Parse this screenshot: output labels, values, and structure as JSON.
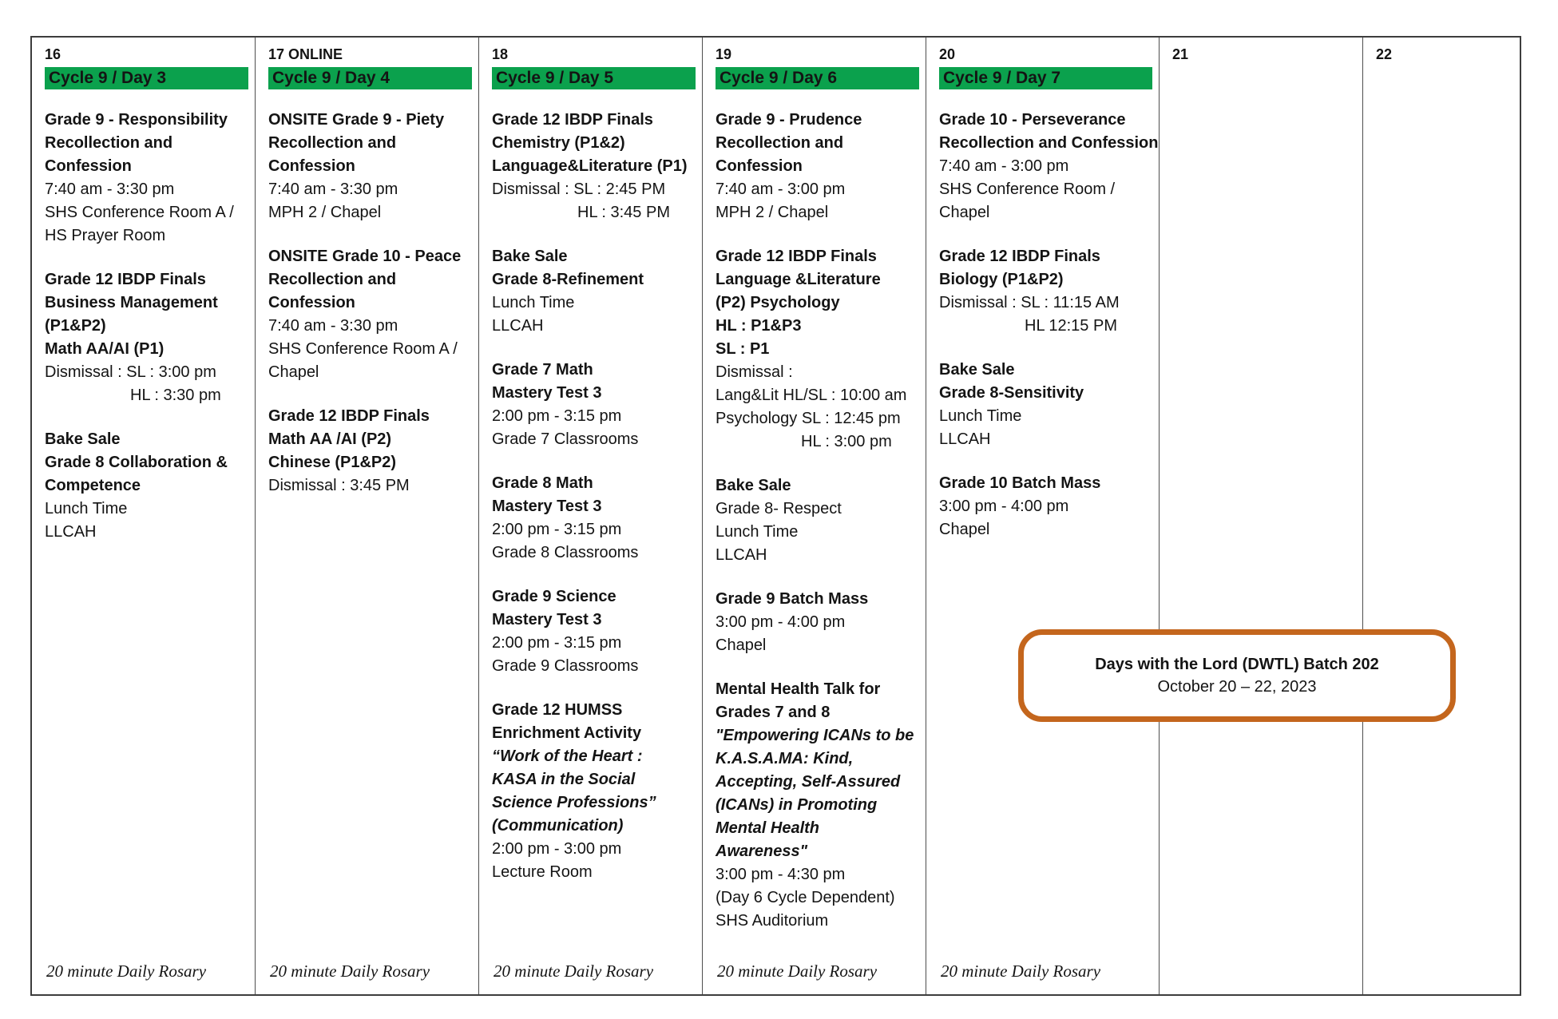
{
  "colors": {
    "cycle_green": "#0ba14d",
    "dwtl_orange": "#c4661d"
  },
  "overlay": {
    "title": "Days with the Lord (DWTL) Batch 202",
    "dates": "October 20 – 22, 2023"
  },
  "calendar": {
    "columns": [
      {
        "day": "16",
        "cycle": "Cycle 9 / Day 3",
        "note": "20 minute Daily Rosary",
        "events": [
          {
            "lines": [
              {
                "t": "Grade 9 - Responsibility",
                "s": "b"
              },
              {
                "t": "Recollection and",
                "s": "b"
              },
              {
                "t": "Confession",
                "s": "b"
              },
              {
                "t": "7:40 am - 3:30 pm",
                "s": "r"
              },
              {
                "t": "SHS Conference Room A /",
                "s": "r"
              },
              {
                "t": "HS Prayer Room",
                "s": "r"
              }
            ]
          },
          {
            "lines": [
              {
                "t": "Grade 12 IBDP Finals",
                "s": "b"
              },
              {
                "t": "Business Management",
                "s": "b"
              },
              {
                "t": "(P1&P2)",
                "s": "b"
              },
              {
                "t": "Math AA/AI (P1)",
                "s": "b"
              },
              {
                "t": "Dismissal : SL : 3:00 pm",
                "s": "r"
              },
              {
                "t": "HL : 3:30 pm",
                "s": "r",
                "ind": true
              }
            ]
          },
          {
            "lines": [
              {
                "t": "Bake Sale",
                "s": "b"
              },
              {
                "t": "Grade 8 Collaboration &",
                "s": "b"
              },
              {
                "t": "Competence",
                "s": "b"
              },
              {
                "t": "Lunch Time",
                "s": "r"
              },
              {
                "t": "LLCAH",
                "s": "r"
              }
            ]
          }
        ]
      },
      {
        "day": "17 ONLINE",
        "cycle": "Cycle 9 / Day 4",
        "note": "20 minute Daily Rosary",
        "events": [
          {
            "lines": [
              {
                "t": "ONSITE Grade 9 - Piety",
                "s": "b"
              },
              {
                "t": "Recollection and",
                "s": "b"
              },
              {
                "t": "Confession",
                "s": "b"
              },
              {
                "t": "7:40 am - 3:30 pm",
                "s": "r"
              },
              {
                "t": "MPH 2 / Chapel",
                "s": "r"
              }
            ]
          },
          {
            "lines": [
              {
                "t": "ONSITE Grade 10 - Peace",
                "s": "b"
              },
              {
                "t": "Recollection and",
                "s": "b"
              },
              {
                "t": "Confession",
                "s": "b"
              },
              {
                "t": "7:40 am - 3:30 pm",
                "s": "r"
              },
              {
                "t": "SHS Conference Room A /",
                "s": "r"
              },
              {
                "t": "Chapel",
                "s": "r"
              }
            ]
          },
          {
            "lines": [
              {
                "t": "Grade 12 IBDP Finals",
                "s": "b"
              },
              {
                "t": "Math AA /AI (P2)",
                "s": "b"
              },
              {
                "t": "Chinese (P1&P2)",
                "s": "b"
              },
              {
                "t": "Dismissal : 3:45 PM",
                "s": "r"
              }
            ]
          }
        ]
      },
      {
        "day": "18",
        "cycle": "Cycle 9 / Day 5",
        "note": "20 minute Daily Rosary",
        "events": [
          {
            "lines": [
              {
                "t": "Grade 12 IBDP Finals",
                "s": "b"
              },
              {
                "t": "Chemistry (P1&2)",
                "s": "b"
              },
              {
                "t": "Language&Literature (P1)",
                "s": "b"
              },
              {
                "t": "Dismissal : SL : 2:45 PM",
                "s": "r"
              },
              {
                "t": "HL : 3:45 PM",
                "s": "r",
                "ind": true
              }
            ]
          },
          {
            "lines": [
              {
                "t": "Bake Sale",
                "s": "b"
              },
              {
                "t": "Grade 8-Refinement",
                "s": "b"
              },
              {
                "t": "Lunch Time",
                "s": "r"
              },
              {
                "t": "LLCAH",
                "s": "r"
              }
            ]
          },
          {
            "lines": [
              {
                "t": "Grade 7 Math",
                "s": "b"
              },
              {
                "t": "Mastery Test 3",
                "s": "b"
              },
              {
                "t": "2:00 pm - 3:15 pm",
                "s": "r"
              },
              {
                "t": "Grade 7 Classrooms",
                "s": "r"
              }
            ]
          },
          {
            "lines": [
              {
                "t": "Grade 8 Math",
                "s": "b"
              },
              {
                "t": "Mastery Test 3",
                "s": "b"
              },
              {
                "t": "2:00 pm - 3:15 pm",
                "s": "r"
              },
              {
                "t": "Grade 8 Classrooms",
                "s": "r"
              }
            ]
          },
          {
            "lines": [
              {
                "t": "Grade 9 Science",
                "s": "b"
              },
              {
                "t": "Mastery Test 3",
                "s": "b"
              },
              {
                "t": "2:00 pm - 3:15 pm",
                "s": "r"
              },
              {
                "t": "Grade 9 Classrooms",
                "s": "r"
              }
            ]
          },
          {
            "lines": [
              {
                "t": "Grade 12 HUMSS",
                "s": "b"
              },
              {
                "t": "Enrichment Activity",
                "s": "b"
              },
              {
                "t": "“Work of the Heart :",
                "s": "bi"
              },
              {
                "t": "KASA in the Social",
                "s": "bi"
              },
              {
                "t": "Science Professions”",
                "s": "bi"
              },
              {
                "t": "(Communication)",
                "s": "bi"
              },
              {
                "t": "2:00 pm - 3:00 pm",
                "s": "r"
              },
              {
                "t": "Lecture Room",
                "s": "r"
              }
            ]
          }
        ]
      },
      {
        "day": "19",
        "cycle": "Cycle 9 / Day 6",
        "note": "20 minute Daily Rosary",
        "events": [
          {
            "lines": [
              {
                "t": "Grade 9 - Prudence",
                "s": "b"
              },
              {
                "t": "Recollection and",
                "s": "b"
              },
              {
                "t": "Confession",
                "s": "b"
              },
              {
                "t": "7:40 am - 3:00 pm",
                "s": "r"
              },
              {
                "t": "MPH 2 / Chapel",
                "s": "r"
              }
            ]
          },
          {
            "lines": [
              {
                "t": "Grade 12 IBDP Finals",
                "s": "b"
              },
              {
                "t": "Language &Literature",
                "s": "b"
              },
              {
                "t": "(P2) Psychology",
                "s": "b"
              },
              {
                "t": "HL : P1&P3",
                "s": "b"
              },
              {
                "t": "SL : P1",
                "s": "b"
              },
              {
                "t": "Dismissal :",
                "s": "r"
              },
              {
                "t": "Lang&Lit HL/SL : 10:00 am",
                "s": "r"
              },
              {
                "t": "Psychology SL : 12:45 pm",
                "s": "r"
              },
              {
                "t": "HL : 3:00 pm",
                "s": "r",
                "ind": true
              }
            ]
          },
          {
            "lines": [
              {
                "t": "Bake Sale",
                "s": "b"
              },
              {
                "t": "Grade 8- Respect",
                "s": "r"
              },
              {
                "t": "Lunch Time",
                "s": "r"
              },
              {
                "t": "LLCAH",
                "s": "r"
              }
            ]
          },
          {
            "lines": [
              {
                "t": "Grade 9 Batch Mass",
                "s": "b"
              },
              {
                "t": "3:00 pm - 4:00 pm",
                "s": "r"
              },
              {
                "t": "Chapel",
                "s": "r"
              }
            ]
          },
          {
            "lines": [
              {
                "t": "Mental Health Talk for",
                "s": "b"
              },
              {
                "t": "Grades 7 and 8",
                "s": "b"
              },
              {
                "t": "\"Empowering ICANs to be",
                "s": "bi"
              },
              {
                "t": "K.A.S.A.MA: Kind,",
                "s": "bi"
              },
              {
                "t": "Accepting, Self-Assured",
                "s": "bi"
              },
              {
                "t": "(ICANs) in Promoting",
                "s": "bi"
              },
              {
                "t": "Mental Health",
                "s": "bi"
              },
              {
                "t": "Awareness\"",
                "s": "bi"
              },
              {
                "t": "3:00 pm - 4:30 pm",
                "s": "r"
              },
              {
                "t": "(Day 6 Cycle Dependent)",
                "s": "r"
              },
              {
                "t": "SHS Auditorium",
                "s": "r"
              }
            ]
          }
        ]
      },
      {
        "day": "20",
        "cycle": "Cycle 9 / Day 7",
        "note": "20 minute Daily Rosary",
        "events": [
          {
            "lines": [
              {
                "t": "Grade 10 - Perseverance",
                "s": "b"
              },
              {
                "t": "Recollection and Confession",
                "s": "b"
              },
              {
                "t": "7:40 am - 3:00 pm",
                "s": "r"
              },
              {
                "t": "SHS Conference Room /",
                "s": "r"
              },
              {
                "t": "Chapel",
                "s": "r"
              }
            ]
          },
          {
            "lines": [
              {
                "t": "Grade 12 IBDP Finals",
                "s": "b"
              },
              {
                "t": "Biology (P1&P2)",
                "s": "b"
              },
              {
                "t": "Dismissal : SL : 11:15 AM",
                "s": "r"
              },
              {
                "t": "HL 12:15 PM",
                "s": "r",
                "ind": true
              }
            ]
          },
          {
            "lines": [
              {
                "t": "Bake Sale",
                "s": "b"
              },
              {
                "t": "Grade 8-Sensitivity",
                "s": "b"
              },
              {
                "t": "Lunch Time",
                "s": "r"
              },
              {
                "t": "LLCAH",
                "s": "r"
              }
            ]
          },
          {
            "lines": [
              {
                "t": "Grade 10 Batch Mass",
                "s": "b"
              },
              {
                "t": "3:00 pm - 4:00 pm",
                "s": "r"
              },
              {
                "t": "Chapel",
                "s": "r"
              }
            ]
          }
        ]
      },
      {
        "day": "21",
        "cycle": null,
        "note": null,
        "events": []
      },
      {
        "day": "22",
        "cycle": null,
        "note": null,
        "events": []
      }
    ]
  }
}
